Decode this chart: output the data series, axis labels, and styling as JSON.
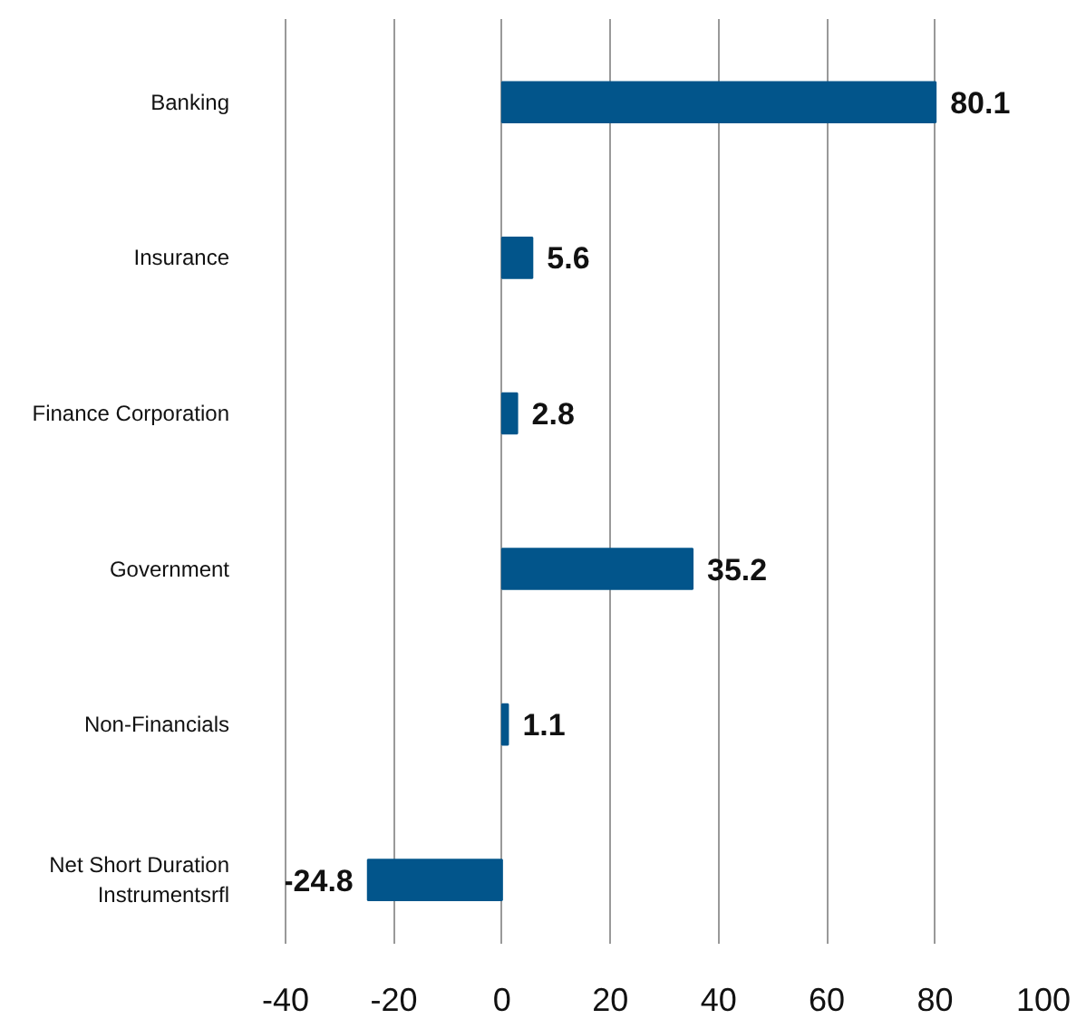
{
  "chart_data": {
    "type": "bar",
    "orientation": "horizontal",
    "categories": [
      "Banking",
      "Insurance",
      "Finance Corporation",
      "Government",
      "Non-Financials",
      "Net Short Duration Instrumentsrfl"
    ],
    "values": [
      80.1,
      5.6,
      2.8,
      35.2,
      1.1,
      -24.8
    ],
    "color": "#02558b",
    "data_labels": true,
    "grid": "x",
    "xlim": [
      -40,
      100
    ],
    "xticks": [
      -40,
      -20,
      0,
      20,
      40,
      60,
      80,
      100
    ]
  }
}
